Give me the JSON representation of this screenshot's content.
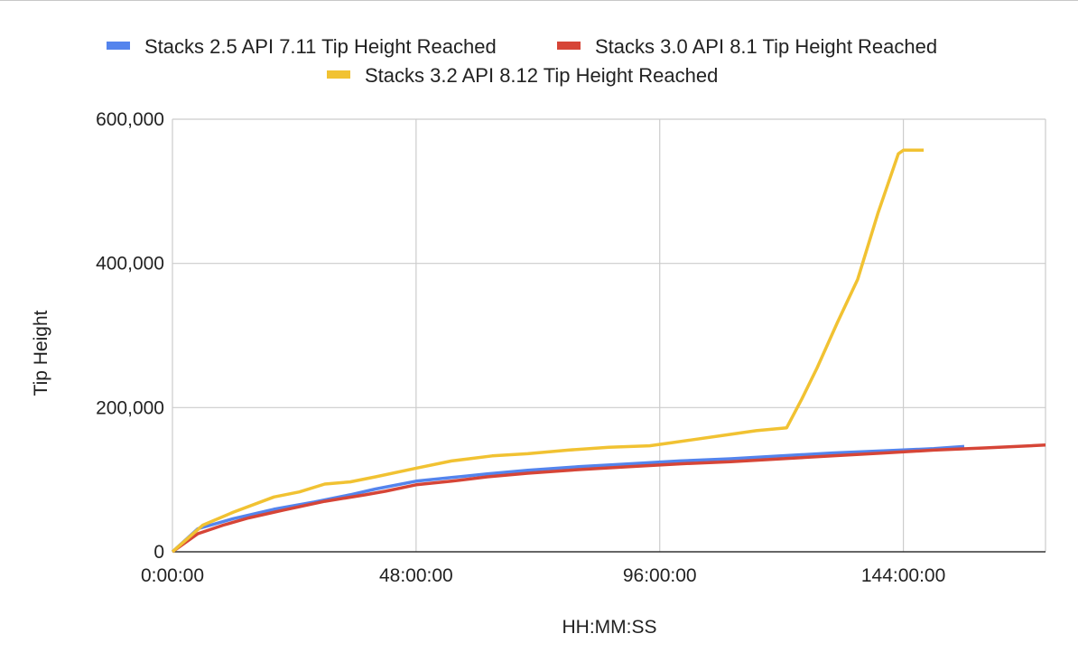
{
  "chart_data": {
    "type": "line",
    "title": "",
    "xlabel": "HH:MM:SS",
    "ylabel": "Tip Height",
    "x_unit": "hours",
    "xlim": [
      0,
      172
    ],
    "ylim": [
      0,
      600000
    ],
    "xticks": [
      {
        "value": 0,
        "label": "0:00:00"
      },
      {
        "value": 48,
        "label": "48:00:00"
      },
      {
        "value": 96,
        "label": "96:00:00"
      },
      {
        "value": 144,
        "label": "144:00:00"
      }
    ],
    "yticks": [
      {
        "value": 0,
        "label": "0"
      },
      {
        "value": 200000,
        "label": "200,000"
      },
      {
        "value": 400000,
        "label": "400,000"
      },
      {
        "value": 600000,
        "label": "600,000"
      }
    ],
    "grid": true,
    "legend_position": "top",
    "series": [
      {
        "name": "Stacks 2.5 API 7.11 Tip Height Reached",
        "color": "#5484ed",
        "x": [
          0,
          5,
          12,
          20,
          28,
          35,
          40,
          48,
          55,
          62,
          70,
          80,
          90,
          100,
          110,
          120,
          130,
          140,
          150,
          156
        ],
        "y": [
          0,
          32000,
          46000,
          59000,
          69000,
          79000,
          87000,
          98000,
          103000,
          108000,
          113000,
          118000,
          122000,
          126000,
          129000,
          133000,
          137000,
          140000,
          143000,
          146000
        ]
      },
      {
        "name": "Stacks 3.0 API 8.1 Tip Height Reached",
        "color": "#d64537",
        "x": [
          0,
          5,
          10,
          15,
          22,
          30,
          38,
          42,
          48,
          55,
          62,
          70,
          80,
          90,
          100,
          110,
          120,
          130,
          140,
          150,
          160,
          172
        ],
        "y": [
          0,
          25000,
          37000,
          47000,
          58000,
          70000,
          79000,
          84000,
          93000,
          98000,
          104000,
          109000,
          114000,
          118000,
          122000,
          125000,
          129000,
          133000,
          137000,
          141000,
          144000,
          148000
        ]
      },
      {
        "name": "Stacks 3.2 API 8.12 Tip Height Reached",
        "color": "#f1c232",
        "x": [
          0,
          6,
          12,
          20,
          25,
          30,
          35,
          40,
          48,
          55,
          63,
          70,
          78,
          86,
          94,
          98,
          102,
          108,
          115,
          121,
          124,
          127,
          131,
          135,
          139,
          143,
          144,
          148
        ],
        "y": [
          0,
          37000,
          55000,
          76000,
          83000,
          94000,
          97000,
          104000,
          116000,
          126000,
          133000,
          136000,
          141000,
          145000,
          147000,
          151000,
          155000,
          161000,
          168000,
          172000,
          212000,
          255000,
          318000,
          378000,
          470000,
          552000,
          557000,
          557000
        ]
      }
    ]
  }
}
